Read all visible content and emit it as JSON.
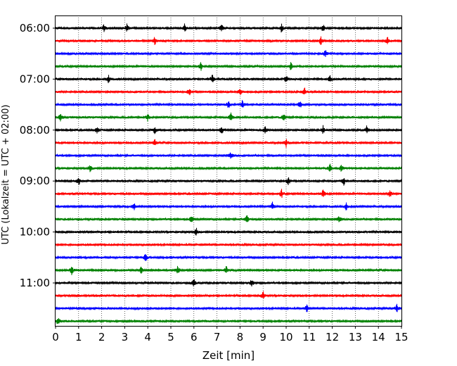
{
  "chart_data": {
    "type": "line",
    "title": "",
    "xlabel": "Zeit  [min]",
    "ylabel": "UTC (Lokalzeit = UTC + 02:00)",
    "xlim": [
      0,
      15
    ],
    "x_ticks": [
      0,
      1,
      2,
      3,
      4,
      5,
      6,
      7,
      8,
      9,
      10,
      11,
      12,
      13,
      14,
      15
    ],
    "x_tick_labels": [
      "0",
      "1",
      "2",
      "3",
      "4",
      "5",
      "6",
      "7",
      "8",
      "9",
      "10",
      "11",
      "12",
      "13",
      "14",
      "15"
    ],
    "y_tick_labels": [
      "06:00",
      "07:00",
      "08:00",
      "09:00",
      "10:00",
      "11:00"
    ],
    "grid": "vertical-dotted",
    "trace_duration_min": 15,
    "color_cycle": [
      "#000000",
      "#ff0000",
      "#0000ff",
      "#008000"
    ],
    "series": [
      {
        "start": "06:00",
        "color": "#000000",
        "events_min": [
          2.1,
          3.1,
          5.6,
          7.2,
          9.8,
          11.6
        ]
      },
      {
        "start": "06:15",
        "color": "#ff0000",
        "events_min": [
          4.3,
          11.5,
          14.4
        ]
      },
      {
        "start": "06:30",
        "color": "#0000ff",
        "events_min": [
          11.7
        ]
      },
      {
        "start": "06:45",
        "color": "#008000",
        "events_min": [
          6.3,
          10.2
        ]
      },
      {
        "start": "07:00",
        "color": "#000000",
        "events_min": [
          2.3,
          6.8,
          10.0,
          11.9
        ]
      },
      {
        "start": "07:15",
        "color": "#ff0000",
        "events_min": [
          5.8,
          8.0,
          10.8
        ]
      },
      {
        "start": "07:30",
        "color": "#0000ff",
        "events_min": [
          7.5,
          8.1,
          10.6
        ]
      },
      {
        "start": "07:45",
        "color": "#008000",
        "events_min": [
          0.2,
          4.0,
          7.6,
          9.9
        ]
      },
      {
        "start": "08:00",
        "color": "#000000",
        "events_min": [
          1.8,
          4.3,
          7.2,
          9.1,
          11.6,
          13.5
        ]
      },
      {
        "start": "08:15",
        "color": "#ff0000",
        "events_min": [
          4.3,
          10.0
        ]
      },
      {
        "start": "08:30",
        "color": "#0000ff",
        "events_min": [
          7.6
        ]
      },
      {
        "start": "08:45",
        "color": "#008000",
        "events_min": [
          1.5,
          11.9,
          12.4
        ]
      },
      {
        "start": "09:00",
        "color": "#000000",
        "events_min": [
          1.0,
          10.1,
          12.5
        ]
      },
      {
        "start": "09:15",
        "color": "#ff0000",
        "events_min": [
          9.8,
          11.6,
          14.5
        ]
      },
      {
        "start": "09:30",
        "color": "#0000ff",
        "events_min": [
          3.4,
          9.4,
          12.6
        ]
      },
      {
        "start": "09:45",
        "color": "#008000",
        "events_min": [
          5.9,
          8.3,
          12.3
        ]
      },
      {
        "start": "10:00",
        "color": "#000000",
        "events_min": [
          6.1
        ]
      },
      {
        "start": "10:15",
        "color": "#ff0000",
        "events_min": []
      },
      {
        "start": "10:30",
        "color": "#0000ff",
        "events_min": [
          3.9
        ]
      },
      {
        "start": "10:45",
        "color": "#008000",
        "events_min": [
          0.7,
          3.7,
          5.3,
          7.4
        ]
      },
      {
        "start": "11:00",
        "color": "#000000",
        "events_min": [
          6.0,
          8.5
        ]
      },
      {
        "start": "11:15",
        "color": "#ff0000",
        "events_min": [
          9.0
        ]
      },
      {
        "start": "11:30",
        "color": "#0000ff",
        "events_min": [
          10.9,
          14.8
        ]
      },
      {
        "start": "11:45",
        "color": "#008000",
        "events_min": [
          0.1
        ]
      }
    ]
  }
}
